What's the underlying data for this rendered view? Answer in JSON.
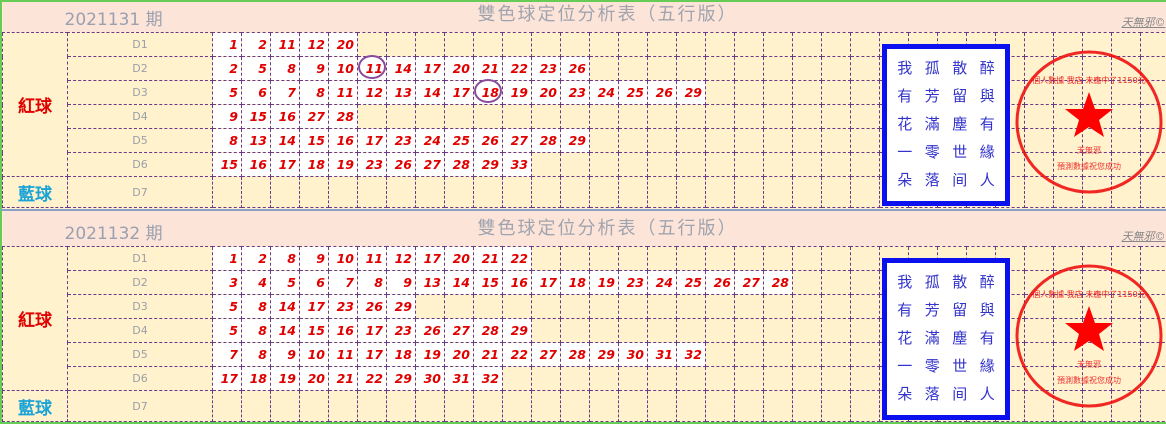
{
  "colors": {
    "header_bg": "#fde4d9",
    "cell_bg": "#fff2cc",
    "number": "#e00000",
    "red_label": "#e00000",
    "blue_label": "#1aa3d6",
    "grid": "#6b3a8a",
    "poem_border": "#0a10ee"
  },
  "panels": [
    {
      "period": "2021131 期",
      "title": "雙色球定位分析表（五行版）",
      "brand": "天無邪©",
      "red_label": "紅球",
      "blue_label": "藍球",
      "rows": [
        {
          "label": "D1",
          "values": [
            1,
            2,
            11,
            12,
            20
          ]
        },
        {
          "label": "D2",
          "values": [
            2,
            5,
            8,
            9,
            10,
            11,
            14,
            17,
            20,
            21,
            22,
            23,
            26
          ]
        },
        {
          "label": "D3",
          "values": [
            5,
            6,
            7,
            8,
            11,
            12,
            13,
            14,
            17,
            18,
            19,
            20,
            23,
            24,
            25,
            26,
            29
          ]
        },
        {
          "label": "D4",
          "values": [
            9,
            15,
            16,
            27,
            28
          ]
        },
        {
          "label": "D5",
          "values": [
            8,
            13,
            14,
            15,
            16,
            17,
            23,
            24,
            25,
            26,
            27,
            28,
            29
          ]
        },
        {
          "label": "D6",
          "values": [
            15,
            16,
            17,
            18,
            19,
            23,
            26,
            27,
            28,
            29,
            33
          ]
        },
        {
          "label": "D7",
          "values": []
        }
      ],
      "circled": [
        {
          "row": "D2",
          "value": 11
        },
        {
          "row": "D3",
          "value": 18
        }
      ]
    },
    {
      "period": "2021132 期",
      "title": "雙色球定位分析表（五行版）",
      "brand": "天無邪©",
      "red_label": "紅球",
      "blue_label": "藍球",
      "rows": [
        {
          "label": "D1",
          "values": [
            1,
            2,
            8,
            9,
            10,
            11,
            12,
            17,
            20,
            21,
            22
          ]
        },
        {
          "label": "D2",
          "values": [
            3,
            4,
            5,
            6,
            7,
            8,
            9,
            13,
            14,
            15,
            16,
            17,
            18,
            19,
            23,
            24,
            25,
            26,
            27,
            28
          ]
        },
        {
          "label": "D3",
          "values": [
            5,
            8,
            14,
            17,
            23,
            26,
            29
          ]
        },
        {
          "label": "D4",
          "values": [
            5,
            8,
            14,
            15,
            16,
            17,
            23,
            26,
            27,
            28,
            29
          ]
        },
        {
          "label": "D5",
          "values": [
            7,
            8,
            9,
            10,
            11,
            17,
            18,
            19,
            20,
            21,
            22,
            27,
            28,
            29,
            30,
            31,
            32
          ]
        },
        {
          "label": "D6",
          "values": [
            17,
            18,
            19,
            20,
            21,
            22,
            29,
            30,
            31,
            32
          ]
        },
        {
          "label": "D7",
          "values": []
        }
      ],
      "circled": []
    }
  ],
  "poem": [
    [
      "我",
      "孤",
      "散",
      "醉"
    ],
    [
      "有",
      "芳",
      "留",
      "與"
    ],
    [
      "花",
      "滿",
      "塵",
      "有"
    ],
    [
      "一",
      "零",
      "世",
      "緣"
    ],
    [
      "朵",
      "落",
      "间",
      "人"
    ]
  ],
  "stamp": {
    "ring_text": "個人數據 我店 未應中了1150元",
    "center_text": "天無邪",
    "bottom_text": "預測數據祝您成功"
  }
}
